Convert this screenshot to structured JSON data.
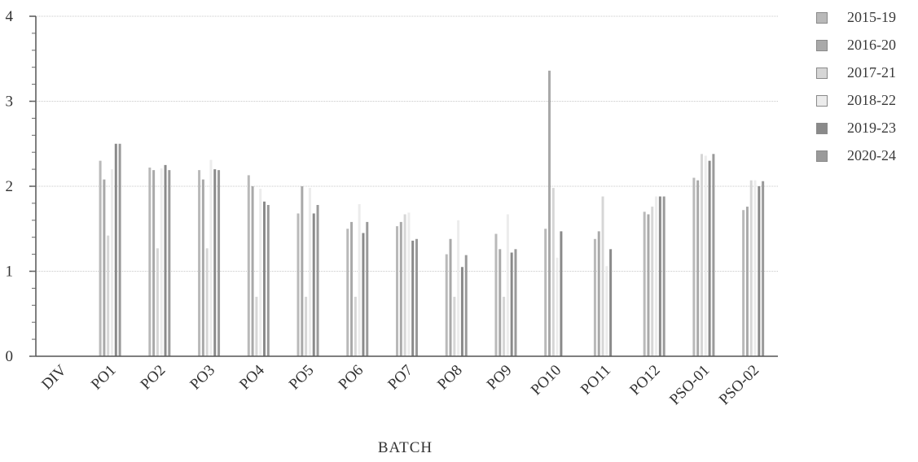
{
  "chart_data": {
    "type": "bar",
    "xlabel": "BATCH",
    "ylabel": "",
    "ylim": [
      0,
      4
    ],
    "yticks": [
      "0",
      "1",
      "2",
      "3",
      "4"
    ],
    "grid": true,
    "legend_position": "right",
    "categories": [
      "DIV",
      "PO1",
      "PO2",
      "PO3",
      "PO4",
      "PO5",
      "PO6",
      "PO7",
      "PO8",
      "PO9",
      "PO10",
      "PO11",
      "PO12",
      "PSO-01",
      "PSO-02"
    ],
    "series": [
      {
        "name": "2015-19",
        "color": "#b9b9b9",
        "values": [
          0,
          2.3,
          2.22,
          2.19,
          2.13,
          1.68,
          1.5,
          1.53,
          1.2,
          1.44,
          1.5,
          1.38,
          1.7,
          2.1,
          1.72
        ]
      },
      {
        "name": "2016-20",
        "color": "#a9a9a9",
        "values": [
          0,
          2.08,
          2.19,
          2.08,
          2.0,
          2.0,
          1.58,
          1.58,
          1.38,
          1.26,
          3.36,
          1.47,
          1.67,
          2.07,
          1.76
        ]
      },
      {
        "name": "2017-21",
        "color": "#d6d6d6",
        "values": [
          0,
          1.42,
          1.27,
          1.27,
          0.7,
          0.7,
          0.7,
          1.67,
          0.7,
          0.7,
          1.98,
          1.88,
          1.76,
          2.38,
          2.07
        ]
      },
      {
        "name": "2018-22",
        "color": "#ececec",
        "values": [
          0,
          2.2,
          2.21,
          2.31,
          1.97,
          1.98,
          1.79,
          1.69,
          1.6,
          1.67,
          1.16,
          1.06,
          1.88,
          2.36,
          2.07
        ]
      },
      {
        "name": "2019-23",
        "color": "#8a8a8a",
        "values": [
          0,
          2.5,
          2.25,
          2.2,
          1.82,
          1.68,
          1.45,
          1.36,
          1.05,
          1.22,
          1.47,
          1.26,
          1.88,
          2.3,
          2.0
        ]
      },
      {
        "name": "2020-24",
        "color": "#9a9a9a",
        "values": [
          0,
          2.5,
          2.19,
          2.19,
          1.78,
          1.78,
          1.58,
          1.38,
          1.19,
          1.26,
          0,
          0,
          1.88,
          2.38,
          2.06
        ]
      }
    ]
  }
}
